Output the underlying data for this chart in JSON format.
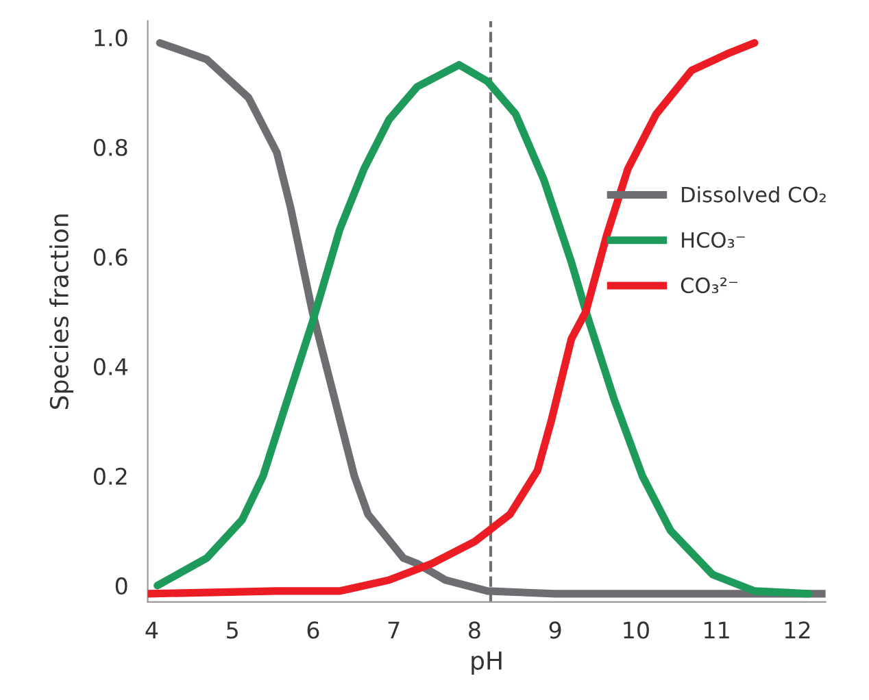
{
  "chart_data": {
    "type": "line",
    "xlabel": "pH",
    "ylabel": "Species fraction",
    "xlim": [
      3.95,
      12.35
    ],
    "ylim": [
      -0.03,
      1.03
    ],
    "xticks": [
      4,
      5,
      6,
      7,
      8,
      9,
      10,
      11,
      12
    ],
    "yticks": [
      {
        "value": 0,
        "label": "0"
      },
      {
        "value": 0.2,
        "label": "0.2"
      },
      {
        "value": 0.4,
        "label": "0.4"
      },
      {
        "value": 0.6,
        "label": "0.6"
      },
      {
        "value": 0.8,
        "label": "0.8"
      },
      {
        "value": 1.0,
        "label": "1.0"
      }
    ],
    "grid": false,
    "legend": "right",
    "line_style": "solid",
    "ref_lines": [
      {
        "axis": "x",
        "value": 8.2,
        "color": "#6d6e71",
        "line_style": "dashed"
      }
    ],
    "series": [
      {
        "name": "Dissolved CO₂",
        "color": "#6d6e71",
        "x": [
          4.1,
          4.68,
          5.2,
          5.55,
          5.72,
          5.99,
          6.25,
          6.51,
          6.68,
          7.12,
          7.29,
          7.64,
          8.16,
          9.0,
          10.0,
          11.0,
          12.35
        ],
        "values": [
          0.99,
          0.96,
          0.89,
          0.79,
          0.69,
          0.5,
          0.35,
          0.2,
          0.13,
          0.05,
          0.04,
          0.01,
          -0.01,
          -0.015,
          -0.015,
          -0.015,
          -0.015
        ]
      },
      {
        "name": "HCO₃⁻",
        "color": "#1e9a5a",
        "x": [
          4.07,
          4.68,
          5.12,
          5.38,
          5.64,
          5.99,
          6.33,
          6.63,
          6.94,
          7.29,
          7.81,
          8.16,
          8.51,
          8.86,
          9.2,
          9.38,
          9.73,
          10.08,
          10.43,
          10.95,
          11.47,
          12.14
        ],
        "values": [
          0.0,
          0.05,
          0.12,
          0.2,
          0.32,
          0.48,
          0.65,
          0.76,
          0.85,
          0.91,
          0.95,
          0.92,
          0.86,
          0.74,
          0.59,
          0.5,
          0.34,
          0.2,
          0.1,
          0.02,
          -0.01,
          -0.015
        ]
      },
      {
        "name": "CO₃²⁻",
        "color": "#ec1c24",
        "x": [
          3.95,
          5.55,
          6.33,
          6.94,
          7.47,
          8.0,
          8.44,
          8.78,
          8.95,
          9.2,
          9.38,
          9.64,
          9.9,
          10.25,
          10.69,
          11.13,
          11.47
        ],
        "values": [
          -0.015,
          -0.01,
          -0.01,
          0.01,
          0.04,
          0.08,
          0.13,
          0.21,
          0.3,
          0.45,
          0.5,
          0.64,
          0.76,
          0.86,
          0.94,
          0.97,
          0.99
        ]
      }
    ]
  }
}
